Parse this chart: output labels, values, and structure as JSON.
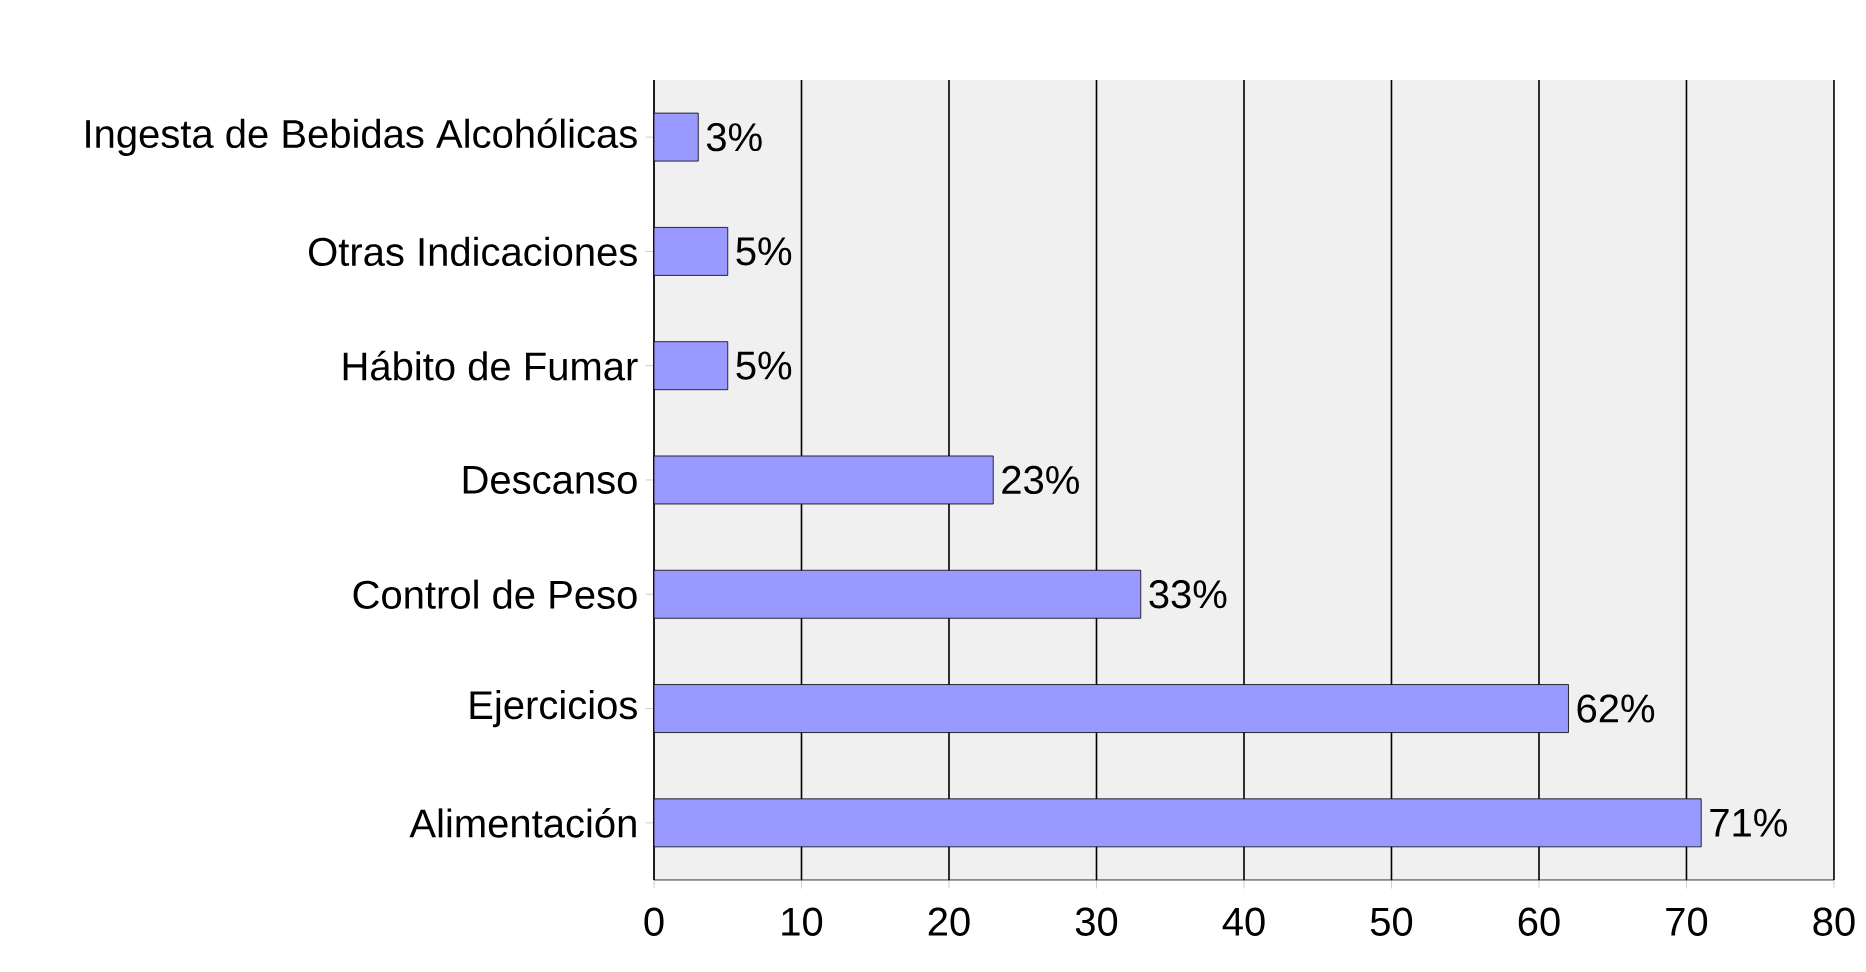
{
  "chart_data": {
    "type": "bar",
    "orientation": "horizontal",
    "categories": [
      "Ingesta de Bebidas Alcohólicas",
      "Otras Indicaciones",
      "Hábito de Fumar",
      "Descanso",
      "Control de Peso",
      "Ejercicios",
      "Alimentación"
    ],
    "values": [
      3,
      5,
      5,
      23,
      33,
      62,
      71
    ],
    "value_labels": [
      "3%",
      "5%",
      "5%",
      "23%",
      "33%",
      "62%",
      "71%"
    ],
    "color": "#9999ff",
    "xlim": [
      0,
      80
    ],
    "xticks": [
      0,
      10,
      20,
      30,
      40,
      50,
      60,
      70,
      80
    ],
    "grid": "x"
  }
}
